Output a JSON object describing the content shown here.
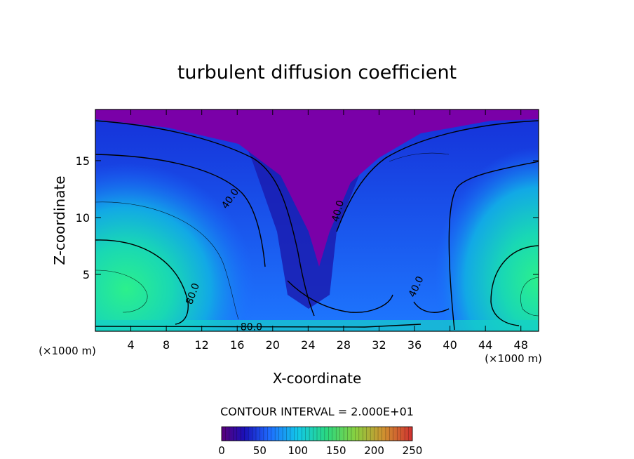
{
  "chart_data": {
    "type": "heatmap",
    "title": "turbulent diffusion coefficient",
    "xlabel": "X-coordinate",
    "ylabel": "Z-coordinate",
    "x_unit_left": "(×1000 m)",
    "x_unit_right": "(×1000 m)",
    "xlim": [
      0,
      50
    ],
    "ylim": [
      0,
      19.5
    ],
    "x_ticks": [
      4,
      8,
      12,
      16,
      20,
      24,
      28,
      32,
      36,
      40,
      44,
      48
    ],
    "y_ticks": [
      5,
      10,
      15
    ],
    "contour_interval_text": "CONTOUR INTERVAL = 2.000E+01",
    "contour_labels": [
      {
        "text": "40.0",
        "x": 15.5,
        "y": 11.5,
        "angle": -55
      },
      {
        "text": "40.0",
        "x": 27.7,
        "y": 10.5,
        "angle": -75
      },
      {
        "text": "40.0",
        "x": 36.5,
        "y": 3.8,
        "angle": -65
      },
      {
        "text": "80.0",
        "x": 11.3,
        "y": 3.2,
        "angle": -70
      },
      {
        "text": "80.0",
        "x": 17.6,
        "y": 0.1,
        "angle": 0
      }
    ],
    "colorbar": {
      "min": 0,
      "max": 250,
      "ticks": [
        0,
        50,
        100,
        150,
        200,
        250
      ]
    },
    "colors": {
      "top_layer": "#7a00a8",
      "low": "#1a10c8",
      "mid": "#1e6cff",
      "high": "#19e0b0",
      "peak": "#2cf08c"
    }
  }
}
